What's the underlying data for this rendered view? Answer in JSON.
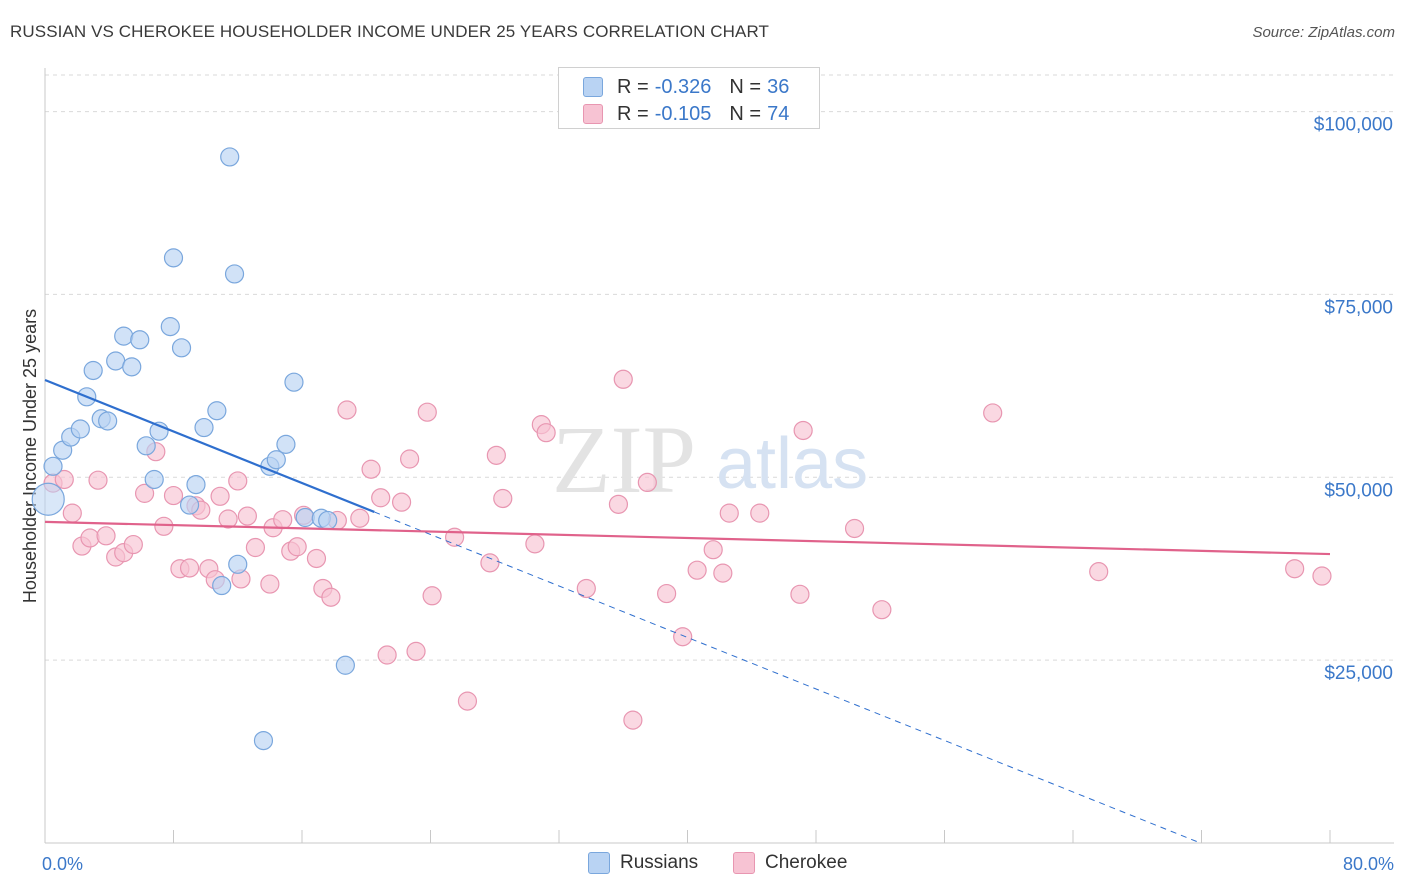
{
  "title": "RUSSIAN VS CHEROKEE HOUSEHOLDER INCOME UNDER 25 YEARS CORRELATION CHART",
  "source": "Source: ZipAtlas.com",
  "watermark": {
    "zip": "ZIP",
    "atlas": "atlas"
  },
  "colors": {
    "russians_fill": "#b9d3f3",
    "russians_stroke": "#7aa7dd",
    "russians_line": "#2f6fce",
    "cherokee_fill": "#f7c3d3",
    "cherokee_stroke": "#e896b1",
    "cherokee_line": "#e0628b",
    "tick_text": "#3b78c9",
    "grid": "#d9d9d9"
  },
  "legend_top": [
    {
      "r_label": "R =",
      "r_value": "-0.326",
      "n_label": "N =",
      "n_value": "36"
    },
    {
      "r_label": "R =",
      "r_value": "-0.105",
      "n_label": "N =",
      "n_value": "74"
    }
  ],
  "legend_bottom": [
    "Russians",
    "Cherokee"
  ],
  "chart_data": {
    "type": "scatter",
    "title": "RUSSIAN VS CHEROKEE HOUSEHOLDER INCOME UNDER 25 YEARS CORRELATION CHART",
    "xlabel": "",
    "ylabel": "Householder Income Under 25 years",
    "xlim": [
      0,
      80
    ],
    "ylim": [
      0,
      105000
    ],
    "x_tick_labels": [
      "0.0%",
      "80.0%"
    ],
    "y_ticks": [
      25000,
      50000,
      75000,
      100000
    ],
    "y_tick_labels": [
      "$25,000",
      "$50,000",
      "$75,000",
      "$100,000"
    ],
    "grid": true,
    "series": [
      {
        "name": "Russians",
        "r": -0.326,
        "n": 36,
        "trend": {
          "x0": 0,
          "y0": 63300,
          "x_solid_end": 20.5,
          "x_dash_end": 80,
          "slope": -880
        },
        "points": [
          [
            0.2,
            47000
          ],
          [
            0.5,
            51500
          ],
          [
            1.1,
            53700
          ],
          [
            1.6,
            55500
          ],
          [
            2.2,
            56600
          ],
          [
            2.6,
            61000
          ],
          [
            3.0,
            64600
          ],
          [
            3.5,
            58000
          ],
          [
            3.9,
            57700
          ],
          [
            4.4,
            65900
          ],
          [
            4.9,
            69300
          ],
          [
            5.4,
            65100
          ],
          [
            5.9,
            68800
          ],
          [
            6.3,
            54300
          ],
          [
            6.8,
            49700
          ],
          [
            7.1,
            56300
          ],
          [
            7.8,
            70600
          ],
          [
            8.0,
            80000
          ],
          [
            8.5,
            67700
          ],
          [
            9.0,
            46200
          ],
          [
            9.4,
            49000
          ],
          [
            9.9,
            56800
          ],
          [
            10.7,
            59100
          ],
          [
            11.0,
            35200
          ],
          [
            11.5,
            93800
          ],
          [
            11.8,
            77800
          ],
          [
            12.0,
            38100
          ],
          [
            13.6,
            14000
          ],
          [
            14.0,
            51500
          ],
          [
            14.4,
            52400
          ],
          [
            15.0,
            54500
          ],
          [
            15.5,
            63000
          ],
          [
            16.2,
            44500
          ],
          [
            17.2,
            44400
          ],
          [
            17.6,
            44100
          ],
          [
            18.7,
            24300
          ]
        ]
      },
      {
        "name": "Cherokee",
        "r": -0.105,
        "n": 74,
        "trend": {
          "x0": 0,
          "y0": 43900,
          "x1": 80,
          "y1": 39500
        },
        "points": [
          [
            0.5,
            49200
          ],
          [
            1.2,
            49700
          ],
          [
            1.7,
            45100
          ],
          [
            2.3,
            40600
          ],
          [
            2.8,
            41700
          ],
          [
            3.3,
            49600
          ],
          [
            3.8,
            42000
          ],
          [
            4.4,
            39100
          ],
          [
            4.9,
            39700
          ],
          [
            5.5,
            40800
          ],
          [
            6.2,
            47800
          ],
          [
            6.9,
            53500
          ],
          [
            7.4,
            43300
          ],
          [
            8.0,
            47500
          ],
          [
            8.4,
            37500
          ],
          [
            9.0,
            37600
          ],
          [
            9.4,
            46100
          ],
          [
            9.7,
            45500
          ],
          [
            10.2,
            37500
          ],
          [
            10.6,
            36000
          ],
          [
            10.9,
            47400
          ],
          [
            11.4,
            44300
          ],
          [
            12.0,
            49500
          ],
          [
            12.2,
            36100
          ],
          [
            12.6,
            44700
          ],
          [
            13.1,
            40400
          ],
          [
            14.0,
            35400
          ],
          [
            14.2,
            43100
          ],
          [
            14.8,
            44200
          ],
          [
            15.3,
            39900
          ],
          [
            15.7,
            40500
          ],
          [
            16.1,
            44800
          ],
          [
            16.9,
            38900
          ],
          [
            17.3,
            34800
          ],
          [
            17.8,
            33600
          ],
          [
            18.2,
            44100
          ],
          [
            18.8,
            59200
          ],
          [
            19.6,
            44400
          ],
          [
            20.3,
            51100
          ],
          [
            20.9,
            47200
          ],
          [
            21.3,
            25700
          ],
          [
            22.2,
            46600
          ],
          [
            22.7,
            52500
          ],
          [
            23.1,
            26200
          ],
          [
            23.8,
            58900
          ],
          [
            24.1,
            33800
          ],
          [
            25.5,
            41800
          ],
          [
            26.3,
            19400
          ],
          [
            27.7,
            38300
          ],
          [
            28.1,
            53000
          ],
          [
            28.5,
            47100
          ],
          [
            30.5,
            40900
          ],
          [
            30.9,
            57200
          ],
          [
            31.2,
            56100
          ],
          [
            33.7,
            34800
          ],
          [
            35.7,
            46300
          ],
          [
            36.0,
            63400
          ],
          [
            36.6,
            16800
          ],
          [
            37.5,
            49300
          ],
          [
            38.7,
            34100
          ],
          [
            39.7,
            28200
          ],
          [
            40.6,
            37300
          ],
          [
            41.6,
            40100
          ],
          [
            42.2,
            36900
          ],
          [
            42.6,
            45100
          ],
          [
            44.5,
            45100
          ],
          [
            47.0,
            34000
          ],
          [
            47.2,
            56400
          ],
          [
            50.4,
            43000
          ],
          [
            52.1,
            31900
          ],
          [
            59.0,
            58800
          ],
          [
            65.6,
            37100
          ],
          [
            77.8,
            37500
          ],
          [
            79.5,
            36500
          ]
        ]
      }
    ]
  }
}
